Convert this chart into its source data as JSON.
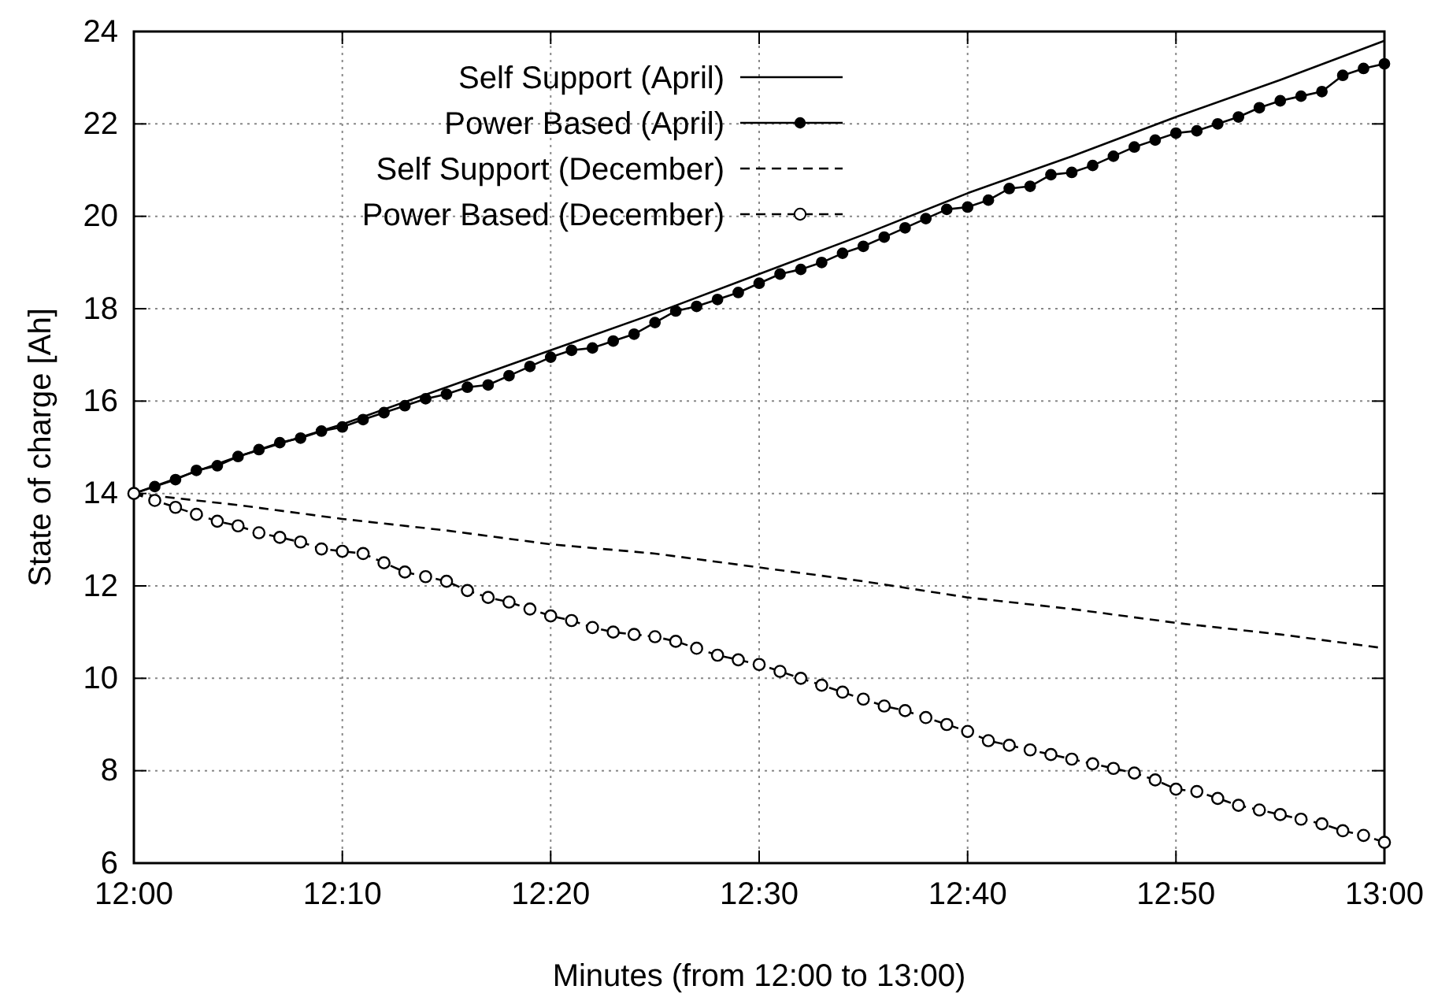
{
  "chart_data": {
    "type": "line",
    "xlabel": "Minutes (from 12:00 to 13:00)",
    "ylabel": "State of charge [Ah]",
    "x": [
      12,
      12.0167,
      12.0333,
      12.05,
      12.0667,
      12.0833,
      12.1,
      12.1167,
      12.1333,
      12.15,
      12.1667,
      12.1833,
      12.2,
      12.2167,
      12.2333,
      12.25,
      12.2667,
      12.2833,
      12.3,
      12.3167,
      12.3333,
      12.35,
      12.3667,
      12.3833,
      12.4,
      12.4167,
      12.4333,
      12.45,
      12.4667,
      12.4833,
      12.5,
      12.5167,
      12.5333,
      12.55,
      12.5667,
      12.5833,
      12.6,
      12.6167,
      12.6333,
      12.65,
      12.6667,
      12.6833,
      12.7,
      12.7167,
      12.7333,
      12.75,
      12.7667,
      12.7833,
      12.8,
      12.8167,
      12.8333,
      12.85,
      12.8667,
      12.8833,
      12.9,
      12.9167,
      12.9333,
      12.95,
      12.9667,
      12.9833,
      13
    ],
    "xlim": [
      12,
      13
    ],
    "xticks": [
      {
        "value": 12,
        "label": "12:00"
      },
      {
        "value": 12.1667,
        "label": "12:10"
      },
      {
        "value": 12.3333,
        "label": "12:20"
      },
      {
        "value": 12.5,
        "label": "12:30"
      },
      {
        "value": 12.6667,
        "label": "12:40"
      },
      {
        "value": 12.8333,
        "label": "12:50"
      },
      {
        "value": 13,
        "label": "13:00"
      }
    ],
    "ylim": [
      6,
      24
    ],
    "yticks": [
      6,
      8,
      10,
      12,
      14,
      16,
      18,
      20,
      22,
      24
    ],
    "grid": true,
    "legend": "top left",
    "series": [
      {
        "name": "Self Support (April)",
        "color": "#000000",
        "line_style": "solid",
        "marker": "none",
        "x": [
          12,
          12.0833,
          12.1667,
          12.25,
          12.3333,
          12.4167,
          12.5,
          12.5833,
          12.6667,
          12.75,
          12.8333,
          12.9167,
          13
        ],
        "values": [
          14,
          14.8,
          15.5,
          16.3,
          17.1,
          17.9,
          18.75,
          19.6,
          20.5,
          21.3,
          22.15,
          22.95,
          23.8
        ]
      },
      {
        "name": "Power Based (April)",
        "color": "#000000",
        "line_style": "solid",
        "marker": "circle",
        "values": [
          14,
          14.15,
          14.3,
          14.5,
          14.6,
          14.8,
          14.95,
          15.1,
          15.2,
          15.35,
          15.44,
          15.6,
          15.75,
          15.9,
          16.05,
          16.15,
          16.3,
          16.35,
          16.55,
          16.75,
          16.95,
          17.1,
          17.15,
          17.3,
          17.45,
          17.7,
          17.95,
          18.05,
          18.2,
          18.35,
          18.55,
          18.75,
          18.85,
          19,
          19.2,
          19.35,
          19.55,
          19.75,
          19.95,
          20.15,
          20.2,
          20.35,
          20.6,
          20.65,
          20.9,
          20.95,
          21.1,
          21.3,
          21.5,
          21.65,
          21.8,
          21.85,
          22,
          22.15,
          22.35,
          22.5,
          22.6,
          22.7,
          23.05,
          23.2,
          23.3
        ]
      },
      {
        "name": "Self Support (December)",
        "color": "#000000",
        "line_style": "dashed",
        "marker": "none",
        "x": [
          12,
          12.0833,
          12.1667,
          12.25,
          12.3333,
          12.4167,
          12.5,
          12.5833,
          12.6667,
          12.75,
          12.8333,
          12.9167,
          13
        ],
        "values": [
          14,
          13.75,
          13.45,
          13.2,
          12.9,
          12.7,
          12.4,
          12.1,
          11.75,
          11.5,
          11.2,
          10.95,
          10.65
        ]
      },
      {
        "name": "Power Based (December)",
        "color": "#000000",
        "line_style": "dashed",
        "marker": "circle",
        "values": [
          14,
          13.85,
          13.7,
          13.55,
          13.4,
          13.3,
          13.15,
          13.05,
          12.95,
          12.8,
          12.75,
          12.7,
          12.5,
          12.3,
          12.2,
          12.1,
          11.9,
          11.75,
          11.65,
          11.5,
          11.35,
          11.25,
          11.1,
          11,
          10.95,
          10.9,
          10.8,
          10.65,
          10.5,
          10.4,
          10.3,
          10.15,
          10,
          9.85,
          9.7,
          9.55,
          9.4,
          9.3,
          9.15,
          9,
          8.85,
          8.65,
          8.55,
          8.45,
          8.35,
          8.25,
          8.15,
          8.05,
          7.95,
          7.8,
          7.6,
          7.55,
          7.4,
          7.25,
          7.15,
          7.05,
          6.95,
          6.85,
          6.7,
          6.6,
          6.45
        ]
      }
    ]
  }
}
